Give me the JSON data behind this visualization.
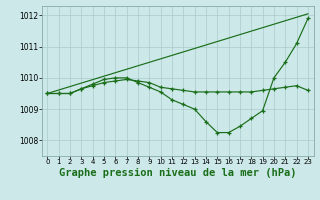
{
  "background_color": "#cce8e8",
  "grid_color": "#aacccc",
  "line_color": "#1a6e1a",
  "title": "Graphe pression niveau de la mer (hPa)",
  "title_fontsize": 7.5,
  "xlim": [
    -0.5,
    23.5
  ],
  "ylim": [
    1007.5,
    1012.3
  ],
  "yticks": [
    1008,
    1009,
    1010,
    1011,
    1012
  ],
  "xticks": [
    0,
    1,
    2,
    3,
    4,
    5,
    6,
    7,
    8,
    9,
    10,
    11,
    12,
    13,
    14,
    15,
    16,
    17,
    18,
    19,
    20,
    21,
    22,
    23
  ],
  "line1_x": [
    0,
    1,
    2,
    3,
    4,
    5,
    6,
    7,
    8,
    9,
    10,
    11,
    12,
    13,
    14,
    15,
    16,
    17,
    18,
    19,
    20,
    21,
    22,
    23
  ],
  "line1_y": [
    1009.5,
    1009.5,
    1009.5,
    1009.65,
    1009.75,
    1009.85,
    1009.9,
    1009.95,
    1009.9,
    1009.85,
    1009.7,
    1009.65,
    1009.6,
    1009.55,
    1009.55,
    1009.55,
    1009.55,
    1009.55,
    1009.55,
    1009.6,
    1009.65,
    1009.7,
    1009.75,
    1009.6
  ],
  "line2_x": [
    0,
    1,
    2,
    3,
    4,
    5,
    6,
    7,
    8,
    9,
    10,
    11,
    12,
    13,
    14,
    15,
    16,
    17,
    18,
    19,
    20,
    21,
    22,
    23
  ],
  "line2_y": [
    1009.5,
    1009.5,
    1009.5,
    1009.65,
    1009.8,
    1009.95,
    1010.0,
    1010.0,
    1009.85,
    1009.7,
    1009.55,
    1009.3,
    1009.15,
    1009.0,
    1008.6,
    1008.25,
    1008.25,
    1008.45,
    1008.7,
    1008.95,
    1010.0,
    1010.5,
    1011.1,
    1011.9
  ],
  "line3_x": [
    0,
    23
  ],
  "line3_y": [
    1009.5,
    1012.05
  ]
}
